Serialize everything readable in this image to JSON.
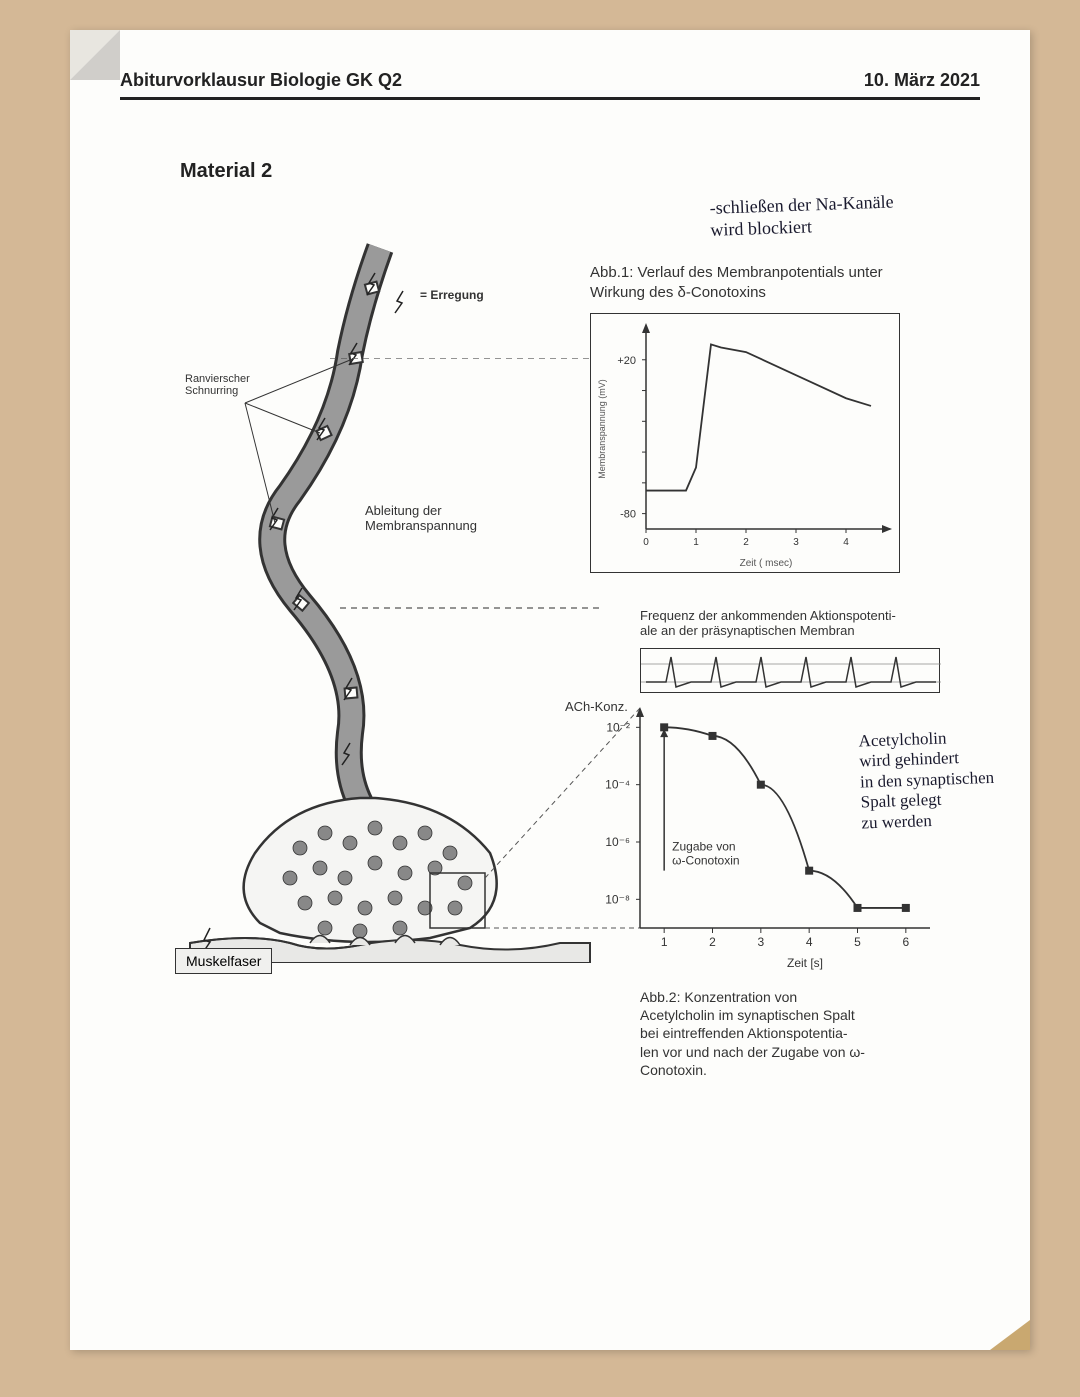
{
  "header": {
    "left": "Abiturvorklausur Biologie GK Q2",
    "right": "10. März 2021"
  },
  "section_title": "Material 2",
  "handwriting": {
    "top": "-schließen der Na-Kanäle\nwird blockiert",
    "side": "Acetylcholin\nwird gehindert\nin den synaptischen\nSpalt gelegt\nzu werden"
  },
  "neuron": {
    "erregung_legend": "= Erregung",
    "ranvier_label": "Ranvierscher\nSchnurring",
    "ableitung_label": "Ableitung der\nMembranspannung",
    "muskelfaser_label": "Muskelfaser",
    "axon_fill": "#9a9a9a",
    "axon_stroke": "#333333",
    "vesicle_fill": "#888888"
  },
  "chart1": {
    "caption": "Abb.1: Verlauf des Membranpotentials unter\nWirkung des δ-Conotoxins",
    "ylabel": "Membranspannung (mV)",
    "xlabel": "Zeit ( msec)",
    "yticks": [
      "+20",
      "-80"
    ],
    "xticks": [
      "0",
      "1",
      "2",
      "3",
      "4"
    ],
    "line_color": "#333333",
    "data": [
      [
        0,
        -65
      ],
      [
        0.8,
        -65
      ],
      [
        1.0,
        -50
      ],
      [
        1.3,
        30
      ],
      [
        1.5,
        28
      ],
      [
        2.0,
        25
      ],
      [
        3.0,
        10
      ],
      [
        4.0,
        -5
      ],
      [
        4.5,
        -10
      ]
    ],
    "ylim": [
      -90,
      40
    ],
    "xlim": [
      0,
      4.8
    ]
  },
  "chart2": {
    "freq_label": "Frequenz der ankommenden Aktionspotenti-\nale an der präsynaptischen Membran",
    "ach_label": "ACh-Konz.",
    "yticks": [
      "10⁻²",
      "10⁻⁴",
      "10⁻⁶",
      "10⁻⁸"
    ],
    "xticks": [
      "1",
      "2",
      "3",
      "4",
      "5",
      "6"
    ],
    "xlabel": "Zeit [s]",
    "zugabe_label": "Zugabe von\nω-Conotoxin",
    "marker_color": "#333333",
    "line_color": "#333333",
    "data": [
      [
        1,
        -2
      ],
      [
        2,
        -2.3
      ],
      [
        3,
        -4
      ],
      [
        4,
        -7
      ],
      [
        5,
        -8.3
      ],
      [
        6,
        -8.3
      ]
    ],
    "ylim": [
      -9,
      -1.5
    ],
    "xlim": [
      0.5,
      6.5
    ]
  },
  "chart2_caption": "Abb.2: Konzentration von\nAcetylcholin im synaptischen Spalt\nbei eintreffenden Aktionspotentia-\nlen vor und nach der Zugabe von ω-\nConotoxin.",
  "colors": {
    "page_bg": "#fdfdfb",
    "border": "#333333",
    "text": "#222222"
  }
}
